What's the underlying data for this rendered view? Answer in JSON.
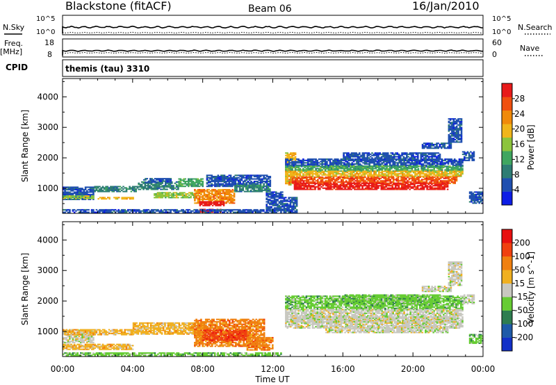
{
  "header": {
    "station": "Blackstone (fitACF)",
    "beam": "Beam 06",
    "date": "16/Jan/2010"
  },
  "top_panels": {
    "nsky_label": "N.Sky",
    "nsearch_label": "N.Search",
    "noise_ticks": [
      "10^5",
      "10^0"
    ],
    "freq_label_1": "Freq.",
    "freq_label_2": "[MHz]",
    "freq_ticks": [
      "18",
      "8"
    ],
    "nave_label": "Nave",
    "nave_ticks": [
      "60",
      "0"
    ],
    "cpid_label": "CPID",
    "cpid_text": "themis (tau) 3310"
  },
  "chart_data": [
    {
      "type": "heatmap",
      "parameter": "power",
      "ylabel": "Slant Range [km]",
      "xlim": [
        0,
        24
      ],
      "ylim": [
        180,
        4600
      ],
      "yticks": [
        1000,
        2000,
        3000,
        4000
      ],
      "colorbar": {
        "label": "Power [dB]",
        "range": [
          0,
          32
        ],
        "ticks": [
          4,
          8,
          12,
          16,
          20,
          24,
          28
        ],
        "colors": [
          "#0d1de6",
          "#1f4fb0",
          "#2e7d74",
          "#3fa660",
          "#8cc43c",
          "#f0b51a",
          "#f08a0a",
          "#f05010",
          "#e81a1a"
        ]
      },
      "regions": [
        {
          "t0": 0.0,
          "t1": 1.8,
          "r0": 620,
          "r1": 1050,
          "level": 1
        },
        {
          "t0": 0.0,
          "t1": 1.8,
          "r0": 650,
          "r1": 760,
          "level": 4
        },
        {
          "t0": 1.8,
          "t1": 4.3,
          "r0": 880,
          "r1": 1080,
          "level": 2
        },
        {
          "t0": 2.0,
          "t1": 4.0,
          "r0": 640,
          "r1": 720,
          "level": 5
        },
        {
          "t0": 4.3,
          "t1": 6.6,
          "r0": 950,
          "r1": 1200,
          "level": 2
        },
        {
          "t0": 4.6,
          "t1": 6.2,
          "r0": 1180,
          "r1": 1330,
          "level": 1
        },
        {
          "t0": 5.2,
          "t1": 7.6,
          "r0": 680,
          "r1": 860,
          "level": 4
        },
        {
          "t0": 6.6,
          "t1": 8.0,
          "r0": 1050,
          "r1": 1300,
          "level": 3
        },
        {
          "t0": 7.5,
          "t1": 9.8,
          "r0": 500,
          "r1": 950,
          "level": 6
        },
        {
          "t0": 7.8,
          "t1": 9.2,
          "r0": 420,
          "r1": 560,
          "level": 8
        },
        {
          "t0": 8.2,
          "t1": 11.8,
          "r0": 1050,
          "r1": 1450,
          "level": 1
        },
        {
          "t0": 9.8,
          "t1": 11.8,
          "r0": 880,
          "r1": 1100,
          "level": 2
        },
        {
          "t0": 7.8,
          "t1": 9.0,
          "r0": 210,
          "r1": 320,
          "level": 8
        },
        {
          "t0": 0.0,
          "t1": 12.5,
          "r0": 200,
          "r1": 320,
          "level": 1
        },
        {
          "t0": 11.6,
          "t1": 12.5,
          "r0": 260,
          "r1": 900,
          "level": 1
        },
        {
          "t0": 12.7,
          "t1": 13.3,
          "r0": 1100,
          "r1": 2150,
          "level": 5
        },
        {
          "t0": 12.7,
          "t1": 22.8,
          "r0": 1700,
          "r1": 1950,
          "level": 1
        },
        {
          "t0": 12.7,
          "t1": 22.8,
          "r0": 1550,
          "r1": 1720,
          "level": 3
        },
        {
          "t0": 12.7,
          "t1": 22.8,
          "r0": 1380,
          "r1": 1560,
          "level": 5
        },
        {
          "t0": 12.9,
          "t1": 22.5,
          "r0": 1150,
          "r1": 1390,
          "level": 7
        },
        {
          "t0": 13.2,
          "t1": 22.0,
          "r0": 950,
          "r1": 1160,
          "level": 8
        },
        {
          "t0": 16.0,
          "t1": 21.5,
          "r0": 1900,
          "r1": 2150,
          "level": 1
        },
        {
          "t0": 20.5,
          "t1": 22.2,
          "r0": 2300,
          "r1": 2500,
          "level": 1
        },
        {
          "t0": 22.0,
          "t1": 22.8,
          "r0": 2500,
          "r1": 3300,
          "level": 1
        },
        {
          "t0": 22.8,
          "t1": 23.5,
          "r0": 1900,
          "r1": 2200,
          "level": 1
        },
        {
          "t0": 23.2,
          "t1": 24.0,
          "r0": 500,
          "r1": 900,
          "level": 1
        },
        {
          "t0": 12.6,
          "t1": 13.4,
          "r0": 200,
          "r1": 700,
          "level": 1
        }
      ]
    },
    {
      "type": "heatmap",
      "parameter": "velocity",
      "ylabel": "Slant Range [km]",
      "xlabel": "Time UT",
      "xlim": [
        0,
        24
      ],
      "ylim": [
        180,
        4600
      ],
      "yticks": [
        1000,
        2000,
        3000,
        4000
      ],
      "xticks": [
        "00:00",
        "04:00",
        "08:00",
        "12:00",
        "16:00",
        "20:00",
        "00:00"
      ],
      "colorbar": {
        "label": "Velocity [m s^-1]",
        "tick_labels": [
          "200",
          "100",
          "50",
          "15",
          "-15",
          "-50",
          "-100",
          "-200"
        ],
        "colors": [
          "#1230c8",
          "#1e5aa8",
          "#2e7d50",
          "#66cc33",
          "#c8c8c0",
          "#f0b020",
          "#f08010",
          "#f04010",
          "#e81010"
        ]
      },
      "regions": [
        {
          "t0": 0.0,
          "t1": 1.8,
          "r0": 620,
          "r1": 1050,
          "level": 4
        },
        {
          "t0": 0.0,
          "t1": 4.0,
          "r0": 880,
          "r1": 1050,
          "level": 5
        },
        {
          "t0": 4.0,
          "t1": 8.2,
          "r0": 900,
          "r1": 1300,
          "level": 5
        },
        {
          "t0": 7.5,
          "t1": 11.5,
          "r0": 500,
          "r1": 1400,
          "level": 6
        },
        {
          "t0": 8.0,
          "t1": 10.5,
          "r0": 700,
          "r1": 1050,
          "level": 7
        },
        {
          "t0": 10.5,
          "t1": 12.0,
          "r0": 380,
          "r1": 800,
          "level": 6
        },
        {
          "t0": 0.0,
          "t1": 12.5,
          "r0": 200,
          "r1": 320,
          "level": 3
        },
        {
          "t0": 0.0,
          "t1": 4.0,
          "r0": 400,
          "r1": 600,
          "level": 5
        },
        {
          "t0": 12.7,
          "t1": 22.8,
          "r0": 1700,
          "r1": 2150,
          "level": 3
        },
        {
          "t0": 12.7,
          "t1": 22.8,
          "r0": 1100,
          "r1": 1720,
          "level": 4
        },
        {
          "t0": 13.0,
          "t1": 22.4,
          "r0": 1300,
          "r1": 1500,
          "level": 4
        },
        {
          "t0": 15.0,
          "t1": 22.0,
          "r0": 950,
          "r1": 1150,
          "level": 4
        },
        {
          "t0": 16.0,
          "t1": 21.5,
          "r0": 1900,
          "r1": 2200,
          "level": 3
        },
        {
          "t0": 20.5,
          "t1": 22.2,
          "r0": 2300,
          "r1": 2500,
          "level": 4
        },
        {
          "t0": 22.0,
          "t1": 22.8,
          "r0": 2500,
          "r1": 3300,
          "level": 4
        },
        {
          "t0": 22.8,
          "t1": 23.5,
          "r0": 1900,
          "r1": 2200,
          "level": 4
        },
        {
          "t0": 23.2,
          "t1": 24.0,
          "r0": 600,
          "r1": 900,
          "level": 3
        }
      ]
    }
  ]
}
